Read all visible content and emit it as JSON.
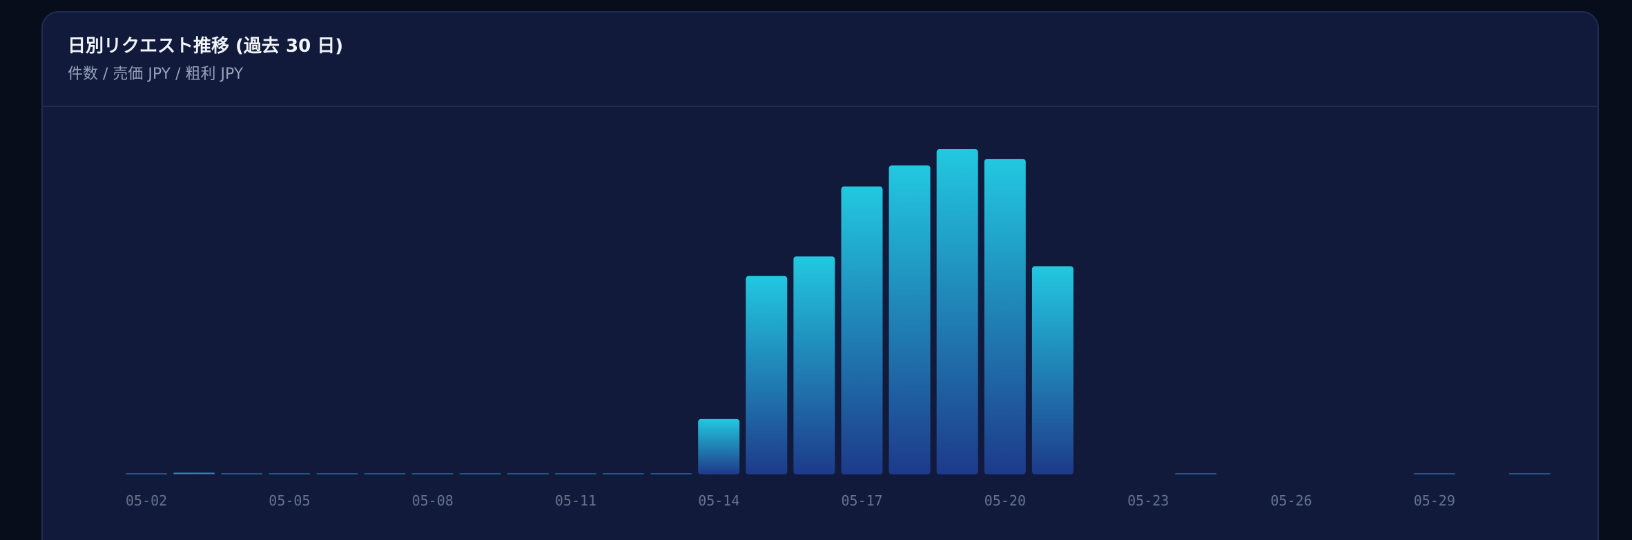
{
  "chart_data": {
    "type": "bar",
    "title": "日別リクエスト推移 (過去 30 日)",
    "subtitle": "件数 / 売価 JPY / 粗利 JPY",
    "categories": [
      "05-02",
      null,
      null,
      "05-05",
      null,
      null,
      "05-08",
      null,
      null,
      "05-11",
      null,
      null,
      "05-14",
      null,
      null,
      "05-17",
      null,
      null,
      "05-20",
      null,
      null,
      "05-23",
      null,
      null,
      "05-26",
      null,
      null,
      "05-29",
      null,
      null
    ],
    "values": [
      0.3,
      0.5,
      0.3,
      0.3,
      0.3,
      0.3,
      0.3,
      0.3,
      0.3,
      0.3,
      0.3,
      0.3,
      17,
      61,
      67,
      88.5,
      95,
      100,
      97,
      64,
      0,
      0,
      0.3,
      0,
      0,
      0,
      0,
      0.3,
      0,
      0.3
    ],
    "gradient": [
      "#22c8e0",
      "#1e3a8a"
    ],
    "ylim": [
      0,
      100
    ],
    "grid": false
  }
}
